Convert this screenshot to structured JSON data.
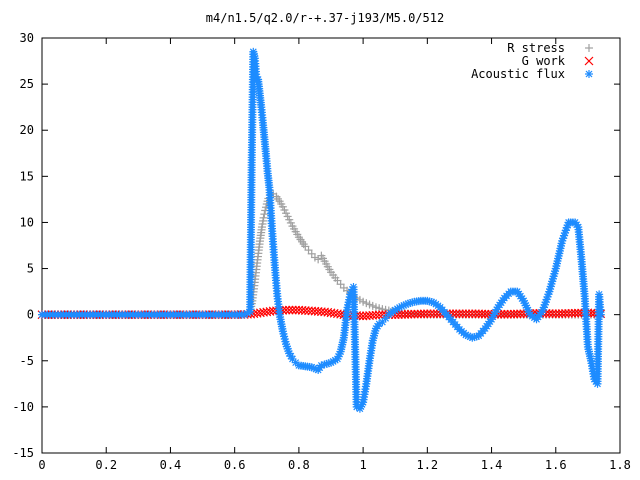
{
  "chart_data": {
    "type": "scatter",
    "title": "m4/n1.5/q2.0/r-+.37-j193/M5.0/512",
    "xlim": [
      0,
      1.8
    ],
    "ylim": [
      -15,
      30
    ],
    "x_ticks": [
      "0",
      "0.2",
      "0.4",
      "0.6",
      "0.8",
      "1",
      "1.2",
      "1.4",
      "1.6",
      "1.8"
    ],
    "y_ticks": [
      "-15",
      "-10",
      "-5",
      "0",
      "5",
      "10",
      "15",
      "20",
      "25",
      "30"
    ],
    "x_tick_values": [
      0,
      0.2,
      0.4,
      0.6,
      0.8,
      1.0,
      1.2,
      1.4,
      1.6,
      1.8
    ],
    "y_tick_values": [
      -15,
      -10,
      -5,
      0,
      5,
      10,
      15,
      20,
      25,
      30
    ],
    "grid": false,
    "legend_position": "top-right",
    "series": [
      {
        "name": "R stress",
        "marker": "plus",
        "color": "#a0a0a0",
        "x": [
          0.0,
          0.05,
          0.1,
          0.15,
          0.2,
          0.25,
          0.3,
          0.35,
          0.4,
          0.45,
          0.5,
          0.55,
          0.6,
          0.63,
          0.648,
          0.655,
          0.66,
          0.665,
          0.67,
          0.675,
          0.68,
          0.685,
          0.69,
          0.695,
          0.7,
          0.705,
          0.71,
          0.72,
          0.73,
          0.74,
          0.75,
          0.76,
          0.77,
          0.78,
          0.79,
          0.8,
          0.81,
          0.82,
          0.83,
          0.84,
          0.85,
          0.86,
          0.87,
          0.88,
          0.89,
          0.9,
          0.92,
          0.94,
          0.96,
          0.98,
          1.0,
          1.02,
          1.04,
          1.06,
          1.08,
          1.1,
          1.12,
          1.14,
          1.16,
          1.18,
          1.2,
          1.25,
          1.3,
          1.35,
          1.4,
          1.45,
          1.5,
          1.55,
          1.6,
          1.65,
          1.7,
          1.74
        ],
        "y": [
          0,
          0,
          0,
          0,
          0,
          0,
          0,
          0,
          0,
          0,
          0,
          0,
          0,
          0,
          0.3,
          1.5,
          2.8,
          4.2,
          5.6,
          7.0,
          8.3,
          9.5,
          10.5,
          11.3,
          12.0,
          12.6,
          13.0,
          13.1,
          12.8,
          12.3,
          11.7,
          11.0,
          10.3,
          9.6,
          9.0,
          8.4,
          7.9,
          7.4,
          7.0,
          6.6,
          6.2,
          6.0,
          6.4,
          5.8,
          5.2,
          4.6,
          3.7,
          2.9,
          2.3,
          1.8,
          1.4,
          1.1,
          0.8,
          0.6,
          0.45,
          0.3,
          0.2,
          0.12,
          0.06,
          0.02,
          0,
          0,
          0,
          0,
          0,
          0,
          0,
          0,
          0,
          0,
          0,
          0
        ]
      },
      {
        "name": "G work",
        "marker": "cross",
        "color": "#ff0000",
        "x": [
          0.0,
          0.05,
          0.1,
          0.15,
          0.2,
          0.25,
          0.3,
          0.35,
          0.4,
          0.45,
          0.5,
          0.55,
          0.6,
          0.65,
          0.66,
          0.68,
          0.7,
          0.72,
          0.74,
          0.76,
          0.78,
          0.8,
          0.82,
          0.84,
          0.86,
          0.88,
          0.9,
          0.92,
          0.94,
          0.96,
          0.98,
          1.0,
          1.02,
          1.04,
          1.06,
          1.08,
          1.1,
          1.15,
          1.2,
          1.25,
          1.3,
          1.35,
          1.4,
          1.45,
          1.5,
          1.55,
          1.6,
          1.65,
          1.7,
          1.74
        ],
        "y": [
          0,
          0,
          0,
          0,
          0,
          0,
          0,
          0,
          0,
          0,
          0,
          0,
          0,
          0.05,
          0.1,
          0.2,
          0.3,
          0.4,
          0.45,
          0.5,
          0.5,
          0.5,
          0.45,
          0.4,
          0.35,
          0.3,
          0.2,
          0.1,
          0.0,
          -0.1,
          -0.1,
          -0.15,
          -0.1,
          -0.05,
          0.0,
          0.0,
          0.0,
          0.05,
          0.1,
          0.1,
          0.1,
          0.1,
          0.05,
          0.05,
          0.1,
          0.15,
          0.1,
          0.15,
          0.2,
          0.1
        ]
      },
      {
        "name": "Acoustic flux",
        "marker": "star",
        "color": "#1e8cff",
        "x": [
          0.0,
          0.05,
          0.1,
          0.15,
          0.2,
          0.25,
          0.3,
          0.35,
          0.4,
          0.45,
          0.5,
          0.55,
          0.6,
          0.63,
          0.648,
          0.653,
          0.658,
          0.663,
          0.668,
          0.673,
          0.678,
          0.683,
          0.688,
          0.693,
          0.698,
          0.703,
          0.708,
          0.713,
          0.718,
          0.723,
          0.728,
          0.733,
          0.74,
          0.75,
          0.76,
          0.77,
          0.78,
          0.79,
          0.8,
          0.82,
          0.84,
          0.86,
          0.87,
          0.88,
          0.9,
          0.92,
          0.93,
          0.94,
          0.95,
          0.96,
          0.97,
          0.98,
          0.99,
          1.0,
          1.01,
          1.02,
          1.03,
          1.04,
          1.05,
          1.06,
          1.07,
          1.08,
          1.1,
          1.12,
          1.14,
          1.16,
          1.18,
          1.2,
          1.22,
          1.24,
          1.26,
          1.28,
          1.3,
          1.32,
          1.34,
          1.36,
          1.38,
          1.4,
          1.42,
          1.44,
          1.46,
          1.48,
          1.5,
          1.52,
          1.54,
          1.56,
          1.58,
          1.6,
          1.62,
          1.64,
          1.66,
          1.67,
          1.68,
          1.69,
          1.7,
          1.71,
          1.72,
          1.73,
          1.735,
          1.74
        ],
        "y": [
          0,
          0,
          0,
          0,
          0,
          0,
          0,
          0,
          0,
          0,
          0,
          0,
          0,
          0,
          0.3,
          16.5,
          28.5,
          27.8,
          25.5,
          25.5,
          24.0,
          22.5,
          20.8,
          19.0,
          17.2,
          15.3,
          13.8,
          11.0,
          8.5,
          6.2,
          4.0,
          2.0,
          0.0,
          -1.8,
          -3.2,
          -4.2,
          -4.8,
          -5.2,
          -5.5,
          -5.6,
          -5.7,
          -6.0,
          -5.5,
          -5.4,
          -5.2,
          -4.8,
          -4.0,
          -2.5,
          0.5,
          2.2,
          3.0,
          -10.0,
          -10.2,
          -9.5,
          -7.5,
          -5.0,
          -2.8,
          -1.5,
          -1.0,
          -0.8,
          -0.4,
          0.0,
          0.5,
          0.9,
          1.2,
          1.4,
          1.5,
          1.5,
          1.3,
          0.8,
          0.0,
          -0.8,
          -1.6,
          -2.2,
          -2.5,
          -2.3,
          -1.5,
          -0.5,
          0.8,
          1.8,
          2.5,
          2.5,
          1.5,
          0.0,
          -0.5,
          0.5,
          2.5,
          5.0,
          8.0,
          10.0,
          10.0,
          9.5,
          6.0,
          2.0,
          -3.5,
          -5.0,
          -7.0,
          -7.5,
          2.2,
          0.0
        ]
      }
    ]
  }
}
